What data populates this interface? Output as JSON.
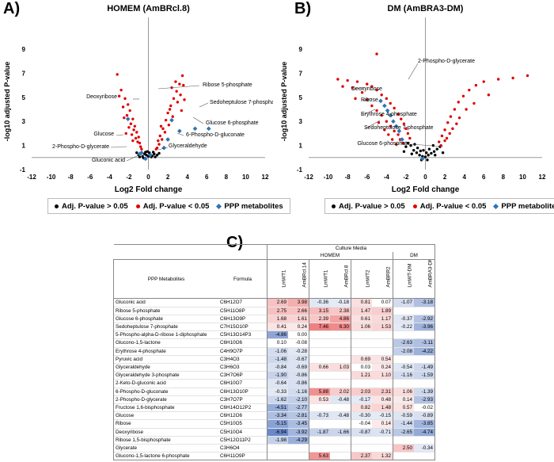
{
  "panels": {
    "a_label": "A)",
    "b_label": "B)",
    "c_label": "C)"
  },
  "chart_data": [
    {
      "type": "scatter",
      "title": "HOMEM (AmBRcl.8)",
      "xlabel": "Log2 Fold change",
      "ylabel": "-log10 adjusted P-value",
      "xlim": [
        -12,
        12
      ],
      "ylim": [
        -1,
        9
      ],
      "xticks": [
        "-12",
        "-10",
        "-8",
        "-6",
        "-4",
        "-2",
        "0",
        "2",
        "4",
        "6",
        "8",
        "10",
        "12"
      ],
      "yticks": [
        "-1",
        "1",
        "3",
        "5",
        "7",
        "9"
      ],
      "series": [
        {
          "name": "Adj. P-value > 0.05",
          "color": "#000000",
          "points": [
            [
              -0.6,
              0.1
            ],
            [
              -0.4,
              0.3
            ],
            [
              -0.2,
              0.2
            ],
            [
              0,
              0.1
            ],
            [
              0.2,
              0.25
            ],
            [
              0.4,
              0.15
            ],
            [
              -0.8,
              0.35
            ],
            [
              0.6,
              0.3
            ],
            [
              -0.3,
              0.45
            ],
            [
              0.3,
              0.05
            ],
            [
              -1,
              0.2
            ],
            [
              0.9,
              0.2
            ],
            [
              -0.1,
              0.5
            ],
            [
              0.1,
              0.4
            ],
            [
              0.5,
              0.45
            ],
            [
              -0.5,
              -0.05
            ],
            [
              0.7,
              0.05
            ],
            [
              -0.9,
              0.05
            ],
            [
              1.1,
              0.35
            ],
            [
              -1.2,
              0.4
            ]
          ]
        },
        {
          "name": "Adj. P-value < 0.05",
          "color": "#e00000",
          "points": [
            [
              -3.2,
              6.9
            ],
            [
              -2.8,
              5.6
            ],
            [
              -2.4,
              4.9
            ],
            [
              -2.1,
              4.4
            ],
            [
              -1.9,
              3.9
            ],
            [
              -1.6,
              3.2
            ],
            [
              -1.4,
              2.6
            ],
            [
              -1.2,
              2.1
            ],
            [
              -1.0,
              1.7
            ],
            [
              -0.9,
              1.2
            ],
            [
              -0.8,
              0.9
            ],
            [
              -2.6,
              4.2
            ],
            [
              -2.2,
              3.5
            ],
            [
              -1.8,
              2.8
            ],
            [
              -1.5,
              2.3
            ],
            [
              -1.3,
              1.6
            ],
            [
              -1.1,
              1.3
            ],
            [
              -3.0,
              5.1
            ],
            [
              -2.5,
              3.3
            ],
            [
              -2.0,
              2.5
            ],
            [
              -1.7,
              1.9
            ],
            [
              -1.6,
              1.4
            ],
            [
              -2.3,
              2.0
            ],
            [
              -0.7,
              0.7
            ],
            [
              1.0,
              1.4
            ],
            [
              1.2,
              1.8
            ],
            [
              1.5,
              2.4
            ],
            [
              1.8,
              3.1
            ],
            [
              2.0,
              3.7
            ],
            [
              2.3,
              4.3
            ],
            [
              2.6,
              4.9
            ],
            [
              2.9,
              5.5
            ],
            [
              3.2,
              6.1
            ],
            [
              3.5,
              6.8
            ],
            [
              2.4,
              5.8
            ],
            [
              2.8,
              6.3
            ],
            [
              3.0,
              4.6
            ],
            [
              3.3,
              5.2
            ],
            [
              1.4,
              1.5
            ],
            [
              1.7,
              2.1
            ],
            [
              2.1,
              2.7
            ],
            [
              2.5,
              3.4
            ],
            [
              3.4,
              3.9
            ],
            [
              3.7,
              4.8
            ],
            [
              3.6,
              6.0
            ],
            [
              2.2,
              4.0
            ],
            [
              1.1,
              1.1
            ],
            [
              0.9,
              0.8
            ],
            [
              0.8,
              0.7
            ],
            [
              1.3,
              2.6
            ]
          ]
        },
        {
          "name": "PPP metabolites",
          "color": "#2e75b6",
          "points": [
            [
              -2.1,
              3.2
            ],
            [
              2.4,
              3.1
            ],
            [
              4.8,
              2.4
            ],
            [
              6.2,
              2.4
            ],
            [
              3.2,
              2.2
            ],
            [
              2.0,
              1.5
            ],
            [
              1.6,
              0.8
            ],
            [
              -0.7,
              0.4
            ],
            [
              -0.9,
              0.3
            ],
            [
              -0.3,
              -0.1
            ],
            [
              0.2,
              0.2
            ]
          ]
        }
      ],
      "annotations": [
        "Deoxyribose",
        "Ribose 5-phosphate",
        "Sedoheptulose 7-phosphate",
        "Glucose 6-phosphate",
        "6-Phospho-D-gluconate",
        "Glucose",
        "Glyceraldehyde",
        "2-Phospho-D-glycerate",
        "Gluconic acid"
      ]
    },
    {
      "type": "scatter",
      "title": "DM (AmBRA3-DM)",
      "xlabel": "Log2 Fold change",
      "ylabel": "-log10 adjusted P-value",
      "xlim": [
        -12,
        12
      ],
      "ylim": [
        -1,
        9
      ],
      "xticks": [
        "-12",
        "-10",
        "-8",
        "-6",
        "-4",
        "-2",
        "0",
        "2",
        "4",
        "6",
        "8",
        "10",
        "12"
      ],
      "yticks": [
        "-1",
        "1",
        "3",
        "5",
        "7",
        "9"
      ],
      "series": [
        {
          "name": "Adj. P-value > 0.05",
          "color": "#000000",
          "points": [
            [
              -1.5,
              1.0
            ],
            [
              -1.2,
              0.6
            ],
            [
              -0.9,
              0.4
            ],
            [
              -0.6,
              0.2
            ],
            [
              -0.3,
              0.1
            ],
            [
              0,
              0.05
            ],
            [
              0.3,
              0.2
            ],
            [
              0.6,
              0.35
            ],
            [
              0.9,
              0.5
            ],
            [
              1.2,
              0.7
            ],
            [
              -1.8,
              1.2
            ],
            [
              -1.4,
              0.3
            ],
            [
              -0.8,
              0.8
            ],
            [
              0.4,
              0.7
            ],
            [
              1.0,
              0.2
            ],
            [
              -2.0,
              0.9
            ],
            [
              1.5,
              0.9
            ],
            [
              -0.2,
              0.6
            ],
            [
              0.1,
              0.4
            ],
            [
              -1.1,
              1.1
            ],
            [
              0.8,
              1.0
            ],
            [
              -0.5,
              0.55
            ],
            [
              1.8,
              0.4
            ],
            [
              -2.2,
              0.5
            ],
            [
              0.2,
              -0.2
            ],
            [
              -0.4,
              -0.2
            ]
          ]
        },
        {
          "name": "Adj. P-value < 0.05",
          "color": "#e00000",
          "points": [
            [
              -5.0,
              8.6
            ],
            [
              -9.0,
              6.5
            ],
            [
              -8.0,
              6.4
            ],
            [
              -7.0,
              6.3
            ],
            [
              -6.0,
              6.1
            ],
            [
              -5.5,
              5.9
            ],
            [
              -5.0,
              5.6
            ],
            [
              -4.5,
              5.2
            ],
            [
              -4.0,
              4.9
            ],
            [
              -3.6,
              4.5
            ],
            [
              -3.2,
              4.1
            ],
            [
              -2.8,
              3.6
            ],
            [
              -2.5,
              3.2
            ],
            [
              -2.2,
              2.8
            ],
            [
              -2.0,
              2.4
            ],
            [
              -1.8,
              2.0
            ],
            [
              -1.6,
              1.6
            ],
            [
              -7.5,
              5.8
            ],
            [
              -6.5,
              5.4
            ],
            [
              -6.0,
              4.8
            ],
            [
              -5.5,
              4.3
            ],
            [
              -5.0,
              3.9
            ],
            [
              -4.5,
              3.5
            ],
            [
              -4.0,
              3.0
            ],
            [
              -3.6,
              2.6
            ],
            [
              -3.2,
              2.2
            ],
            [
              -2.8,
              1.9
            ],
            [
              -2.6,
              1.5
            ],
            [
              -2.3,
              1.2
            ],
            [
              -8.5,
              5.9
            ],
            [
              -7.2,
              4.9
            ],
            [
              -4.8,
              2.9
            ],
            [
              -4.2,
              2.3
            ],
            [
              -3.8,
              1.9
            ],
            [
              -3.4,
              1.5
            ],
            [
              -3.0,
              1.1
            ],
            [
              1.4,
              1.3
            ],
            [
              1.7,
              1.8
            ],
            [
              2.0,
              2.3
            ],
            [
              2.3,
              2.9
            ],
            [
              2.6,
              3.4
            ],
            [
              3.0,
              4.0
            ],
            [
              3.4,
              4.6
            ],
            [
              3.9,
              5.1
            ],
            [
              4.5,
              5.6
            ],
            [
              5.2,
              6.0
            ],
            [
              6.0,
              6.3
            ],
            [
              7.5,
              6.5
            ],
            [
              9.0,
              6.6
            ],
            [
              10.5,
              6.8
            ],
            [
              2.2,
              1.6
            ],
            [
              2.8,
              2.4
            ],
            [
              3.5,
              3.3
            ],
            [
              4.2,
              4.0
            ],
            [
              5.0,
              4.5
            ],
            [
              6.5,
              5.2
            ],
            [
              1.6,
              1.0
            ],
            [
              2.0,
              1.4
            ],
            [
              2.5,
              2.0
            ],
            [
              3.2,
              2.8
            ]
          ]
        },
        {
          "name": "PPP metabolites",
          "color": "#2e75b6",
          "points": [
            [
              -4.6,
              4.7
            ],
            [
              -4.2,
              4.3
            ],
            [
              -3.9,
              3.9
            ],
            [
              -3.6,
              3.5
            ],
            [
              -3.3,
              3.0
            ],
            [
              -3.0,
              2.6
            ],
            [
              -2.7,
              2.2
            ],
            [
              -2.4,
              1.5
            ],
            [
              -0.3,
              -0.1
            ]
          ]
        }
      ],
      "annotations": [
        "2-Phospho-D-glycerate",
        "Deoxyribose",
        "Ribose",
        "Erythrose 4-phosphate",
        "Sedoheptulose 7-phosphate",
        "Glucose 6-phosphate"
      ]
    }
  ],
  "legend": {
    "ns": "Adj. P-value > 0.05",
    "sig": "Adj. P-value < 0.05",
    "ppp": "PPP metabolites"
  },
  "table": {
    "culture_media": "Culture Media",
    "groups": [
      "HOMEM",
      "DM"
    ],
    "col_metabolite": "PPP Metabolites",
    "col_formula": "Formula",
    "columns": [
      "LmWT1",
      "AmBRcl.14",
      "LmWT1",
      "AmBRcl.8",
      "LmWT2",
      "AmBRR2",
      "LmWT-DM",
      "AmBRA3-DM"
    ],
    "rows": [
      {
        "name": "Gluconic acid",
        "formula": "C6H12O7",
        "values": [
          "2.69",
          "3.98",
          "-0.36",
          "-0.18",
          "0.81",
          "0.07",
          "-1.07",
          "-3.18"
        ]
      },
      {
        "name": "Ribose 5-phosphate",
        "formula": "C5H11O8P",
        "values": [
          "2.75",
          "2.66",
          "3.15",
          "2.38",
          "1.47",
          "1.89",
          "",
          ""
        ]
      },
      {
        "name": "Glucose 6-phosphate",
        "formula": "C6H13O9P",
        "values": [
          "1.68",
          "1.61",
          "2.39",
          "4.86",
          "0.61",
          "1.17",
          "-0.37",
          "-2.92"
        ]
      },
      {
        "name": "Sedoheptulose 7-phosphate",
        "formula": "C7H15O10P",
        "values": [
          "0.41",
          "0.24",
          "7.46",
          "6.30",
          "1.06",
          "1.53",
          "-0.22",
          "-3.96"
        ]
      },
      {
        "name": "5-Phospho-alpha-D-ribose 1-diphosphate",
        "formula": "C5H13O14P3",
        "values": [
          "-4.86",
          "0.00",
          "",
          "",
          "",
          "",
          "",
          ""
        ]
      },
      {
        "name": "Glucono-1,5-lactone",
        "formula": "C6H10O6",
        "values": [
          "0.10",
          "-0.08",
          "",
          "",
          "",
          "",
          "-2.63",
          "-3.11"
        ]
      },
      {
        "name": "Erythrose 4-phosphate",
        "formula": "C4H9O7P",
        "values": [
          "-1.06",
          "-0.28",
          "",
          "",
          "",
          "",
          "-2.08",
          "-4.22"
        ]
      },
      {
        "name": "Pyruvic acid",
        "formula": "C3H4O3",
        "values": [
          "-1.48",
          "-0.67",
          "",
          "",
          "0.69",
          "0.54",
          "",
          ""
        ]
      },
      {
        "name": "Glyceraldehyde",
        "formula": "C3H6O3",
        "values": [
          "-0.84",
          "-0.69",
          "0.66",
          "1.03",
          "0.03",
          "0.24",
          "-0.54",
          "-1.49"
        ]
      },
      {
        "name": "Glyceraldehyde 3-phosphate",
        "formula": "C3H7O6P",
        "values": [
          "-1.90",
          "-0.86",
          "",
          "",
          "1.21",
          "1.10",
          "-1.16",
          "-1.59"
        ]
      },
      {
        "name": "2-Keto-D-gluconic acid",
        "formula": "C6H10O7",
        "values": [
          "-0.64",
          "-0.86",
          "",
          "",
          "",
          "",
          "",
          ""
        ]
      },
      {
        "name": "6-Phospho-D-gluconate",
        "formula": "C6H13O10P",
        "values": [
          "-0.33",
          "-1.16",
          "5.88",
          "2.02",
          "2.03",
          "2.31",
          "1.06",
          "-1.39"
        ]
      },
      {
        "name": "2-Phospho-D-glycerate",
        "formula": "C3H7O7P",
        "values": [
          "-1.62",
          "-2.10",
          "0.53",
          "-0.48",
          "-0.17",
          "0.48",
          "0.14",
          "-2.93"
        ]
      },
      {
        "name": "Fructose 1,6-bisphosphate",
        "formula": "C6H14O12P2",
        "values": [
          "-4.51",
          "-2.77",
          "",
          "",
          "0.82",
          "1.48",
          "0.57",
          "-0.02"
        ]
      },
      {
        "name": "Glucose",
        "formula": "C6H12O6",
        "values": [
          "-3.34",
          "-2.81",
          "-0.73",
          "-0.48",
          "-0.30",
          "-0.15",
          "-0.59",
          "-0.89"
        ]
      },
      {
        "name": "Ribose",
        "formula": "C5H10O5",
        "values": [
          "-5.15",
          "-3.45",
          "",
          "",
          "-0.04",
          "0.14",
          "-1.44",
          "-3.85"
        ]
      },
      {
        "name": "Deoxyribose",
        "formula": "C5H10O4",
        "values": [
          "-6.94",
          "-3.92",
          "-1.87",
          "-1.66",
          "-0.87",
          "-0.71",
          "-2.65",
          "-4.74"
        ]
      },
      {
        "name": "Ribose 1,5-bisphosphate",
        "formula": "C5H12O11P2",
        "values": [
          "-1.98",
          "-4.29",
          "",
          "",
          "",
          "",
          "",
          ""
        ]
      },
      {
        "name": "Glycerate",
        "formula": "C3H6O4",
        "values": [
          "",
          "",
          "",
          "",
          "",
          "",
          "2.50",
          "-0.34"
        ]
      },
      {
        "name": "Glucono-1,5-lactone 6-phosphate",
        "formula": "C6H11O9P",
        "values": [
          "",
          "",
          "5.63",
          "",
          "2.37",
          "1.32",
          "",
          ""
        ]
      }
    ]
  }
}
